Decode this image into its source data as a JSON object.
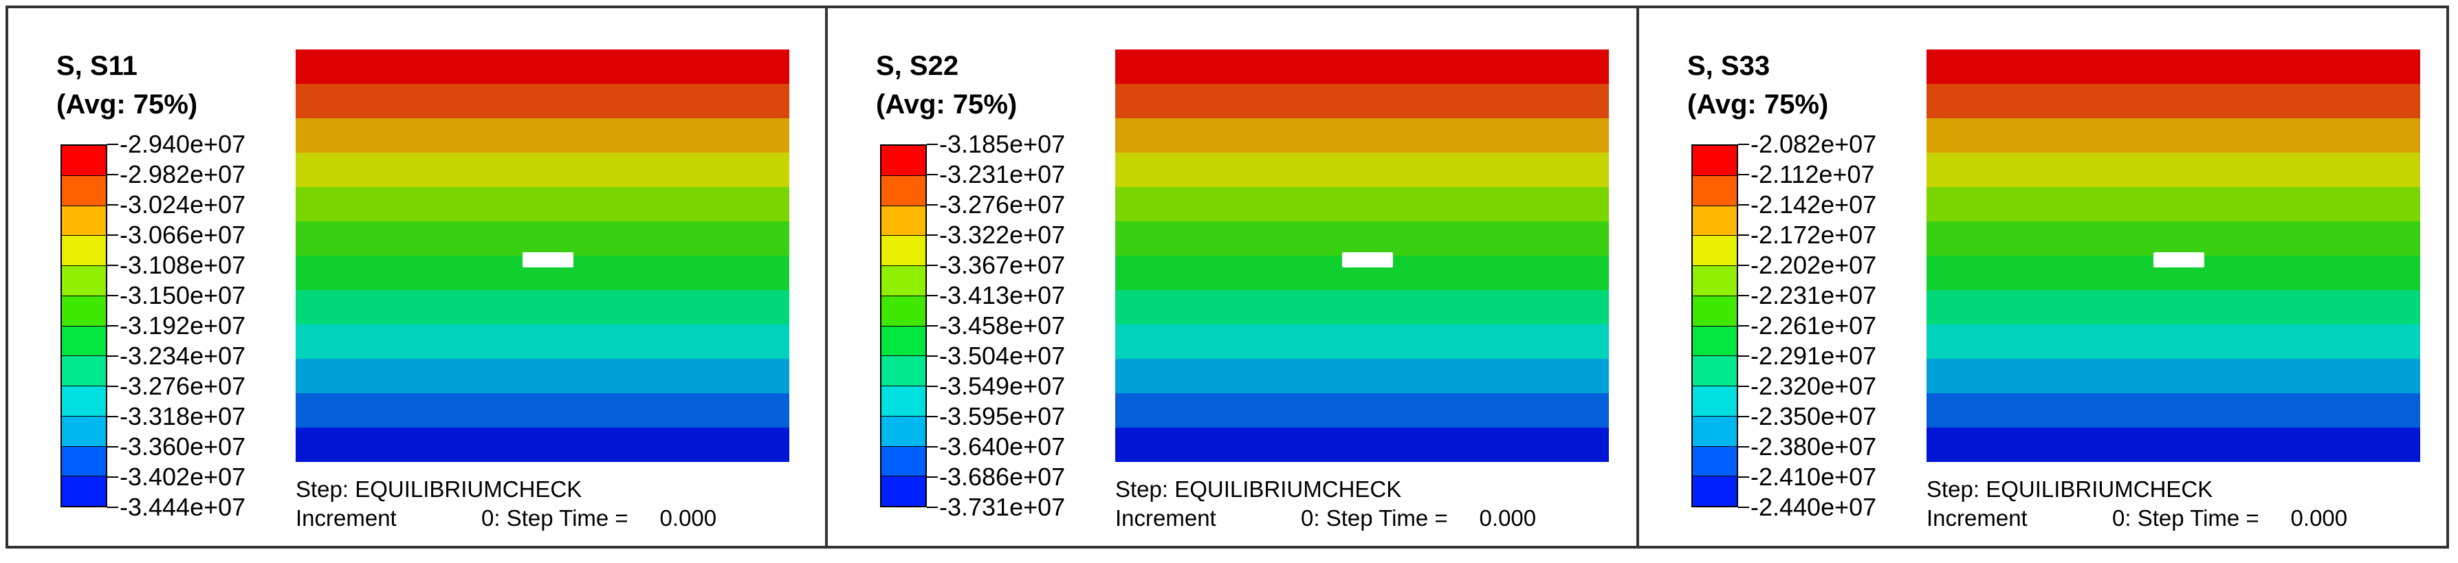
{
  "colors": {
    "contour_bands": [
      "#dc0000",
      "#d9480a",
      "#d8a000",
      "#c6d400",
      "#7ad600",
      "#38d010",
      "#10d030",
      "#00d87a",
      "#00d2bc",
      "#00a0d8",
      "#0460d8",
      "#0016d6"
    ],
    "legend_swatches": [
      "#ff0000",
      "#ff6000",
      "#ffb800",
      "#e8f000",
      "#90f000",
      "#40e800",
      "#00e840",
      "#00e890",
      "#00e0e0",
      "#00b8f0",
      "#0060ff",
      "#0020ff"
    ]
  },
  "panels": [
    {
      "variable": "S, S11",
      "averaging": "(Avg: 75%)",
      "legend_values": [
        "-2.940e+07",
        "-2.982e+07",
        "-3.024e+07",
        "-3.066e+07",
        "-3.108e+07",
        "-3.150e+07",
        "-3.192e+07",
        "-3.234e+07",
        "-3.276e+07",
        "-3.318e+07",
        "-3.360e+07",
        "-3.402e+07",
        "-3.444e+07"
      ],
      "step_line": "Step: EQUILIBRIUMCHECK",
      "increment_label": "Increment",
      "increment_value": "0: Step Time =",
      "step_time": "0.000"
    },
    {
      "variable": "S, S22",
      "averaging": "(Avg: 75%)",
      "legend_values": [
        "-3.185e+07",
        "-3.231e+07",
        "-3.276e+07",
        "-3.322e+07",
        "-3.367e+07",
        "-3.413e+07",
        "-3.458e+07",
        "-3.504e+07",
        "-3.549e+07",
        "-3.595e+07",
        "-3.640e+07",
        "-3.686e+07",
        "-3.731e+07"
      ],
      "step_line": "Step: EQUILIBRIUMCHECK",
      "increment_label": "Increment",
      "increment_value": "0: Step Time =",
      "step_time": "0.000"
    },
    {
      "variable": "S, S33",
      "averaging": "(Avg: 75%)",
      "legend_values": [
        "-2.082e+07",
        "-2.112e+07",
        "-2.142e+07",
        "-2.172e+07",
        "-2.202e+07",
        "-2.231e+07",
        "-2.261e+07",
        "-2.291e+07",
        "-2.320e+07",
        "-2.350e+07",
        "-2.380e+07",
        "-2.410e+07",
        "-2.440e+07"
      ],
      "step_line": "Step: EQUILIBRIUMCHECK",
      "increment_label": "Increment",
      "increment_value": "0: Step Time =",
      "step_time": "0.000"
    }
  ]
}
